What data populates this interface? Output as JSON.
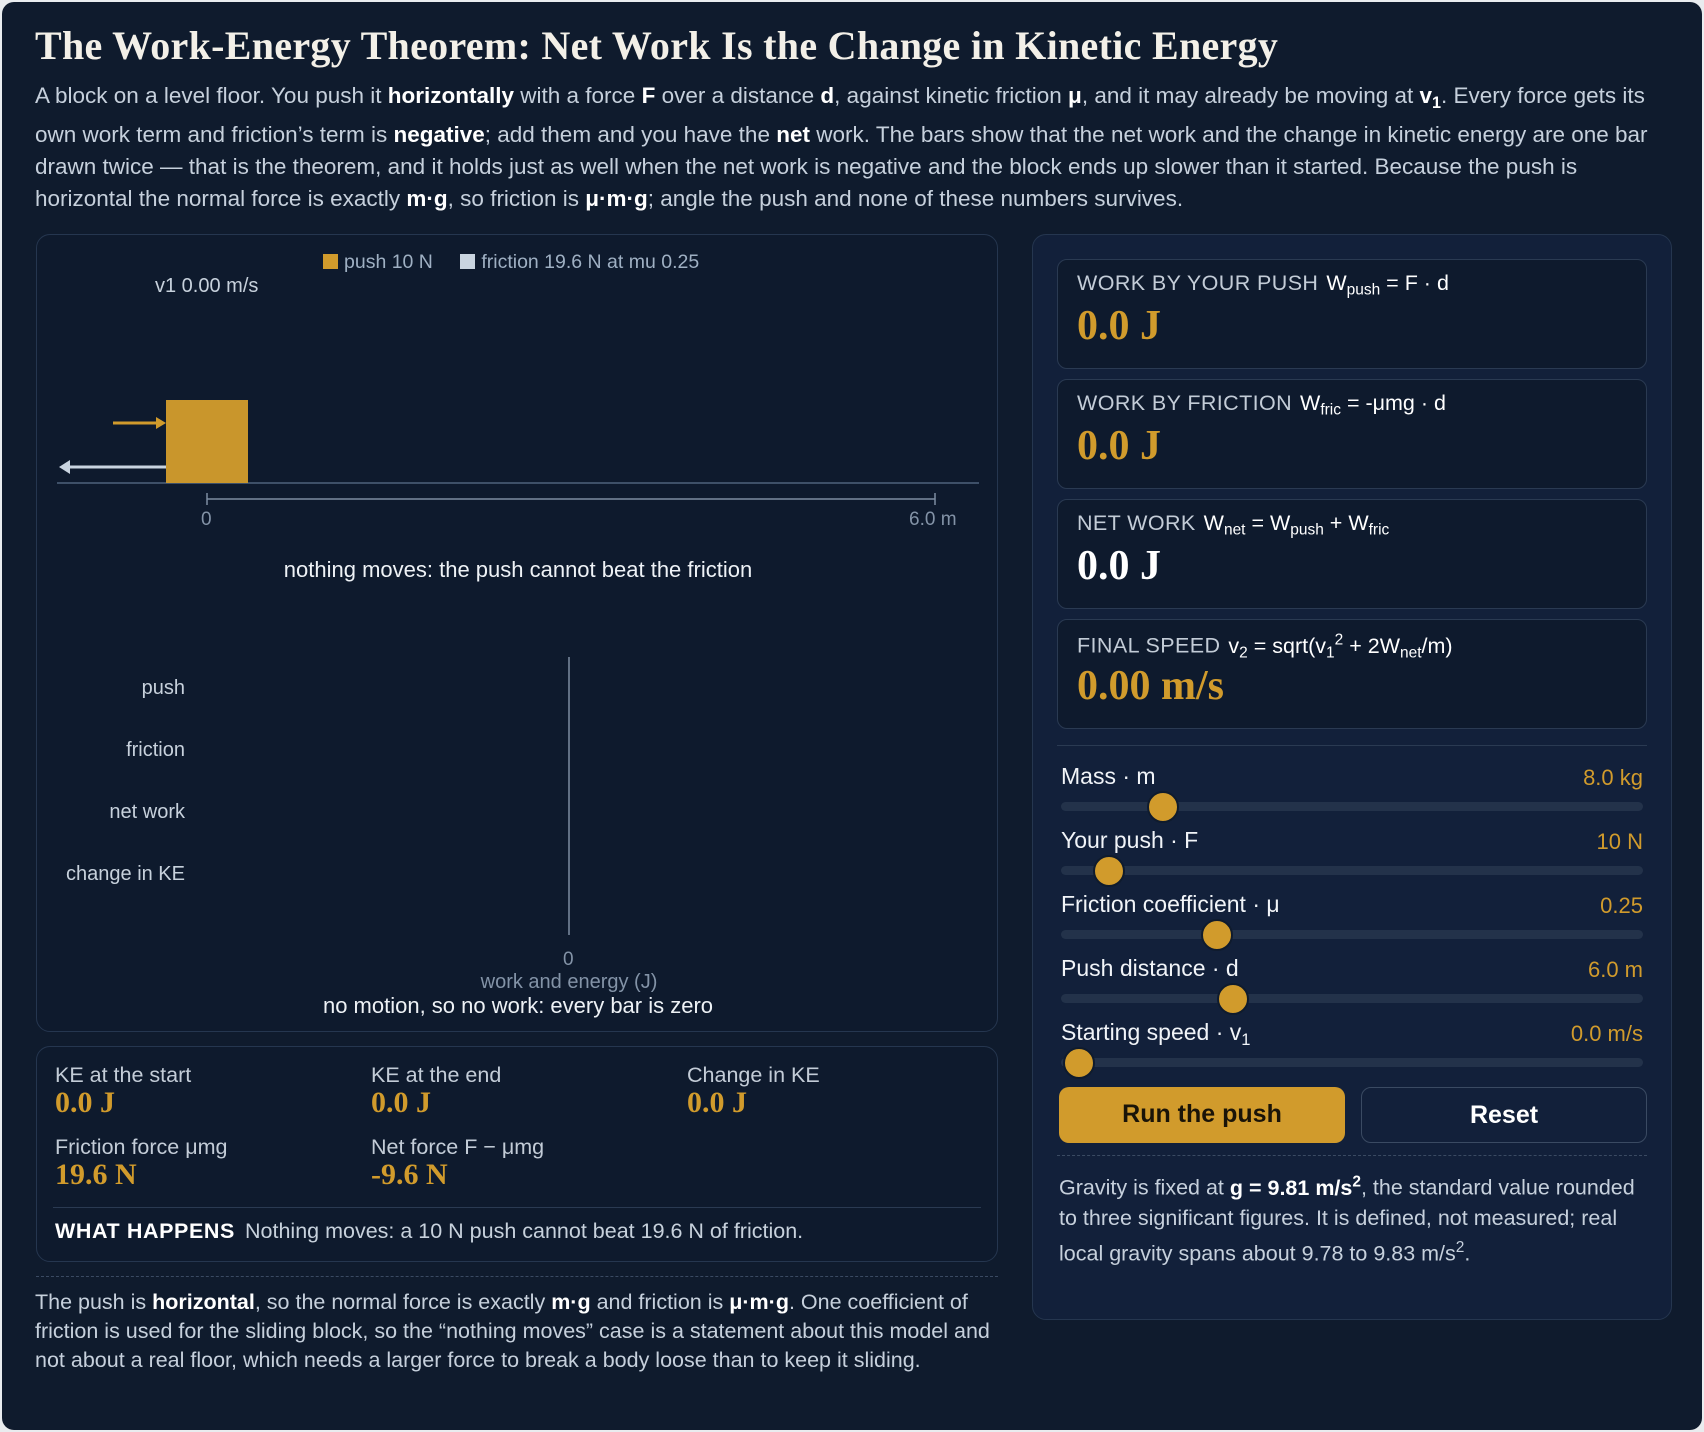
{
  "title": "The Work-Energy Theorem: Net Work Is the Change in Kinetic Energy",
  "legend": {
    "push_label": "push 10 N",
    "push_color": "#d19b2c",
    "friction_label": "friction 19.6 N at mu 0.25",
    "friction_color": "#c9d4e0"
  },
  "sim": {
    "v1_readout": "v1 0.00 m/s",
    "track_start": "0",
    "track_end": "6.0 m",
    "caption": "nothing moves: the push cannot beat the friction"
  },
  "bars": {
    "labels": [
      "push",
      "friction",
      "net work",
      "change in KE"
    ],
    "values": [
      0,
      0,
      0,
      0
    ],
    "zero_tick": "0",
    "axis_label": "work and energy (J)",
    "caption": "no motion, so no work: every bar is zero"
  },
  "stats": {
    "ke_start": {
      "label": "KE at the start",
      "value": "0.0 J"
    },
    "ke_end": {
      "label": "KE at the end",
      "value": "0.0 J"
    },
    "delta_ke": {
      "label": "Change in KE",
      "value": "0.0 J"
    },
    "friction_force": {
      "label": "Friction force μmg",
      "value": "19.6 N"
    },
    "net_force": {
      "label": "Net force F − μmg",
      "value": "-9.6 N"
    },
    "what_happens_label": "WHAT HAPPENS",
    "what_happens_text": "Nothing moves: a 10 N push cannot beat 19.6 N of friction."
  },
  "cards": {
    "push": {
      "label": "WORK BY YOUR PUSH",
      "value": "0.0 J"
    },
    "friction": {
      "label": "WORK BY FRICTION",
      "value": "0.0 J"
    },
    "net": {
      "label": "NET WORK",
      "value": "0.0 J"
    },
    "speed": {
      "label": "FINAL SPEED",
      "value": "0.00 m/s"
    }
  },
  "sliders": {
    "mass": {
      "name": "Mass · m",
      "value": "8.0 kg",
      "fraction": 0.175
    },
    "push": {
      "name": "Your push · F",
      "value": "10 N",
      "fraction": 0.082
    },
    "mu": {
      "name": "Friction coefficient · μ",
      "value": "0.25",
      "fraction": 0.268
    },
    "distance": {
      "name": "Push distance · d",
      "value": "6.0 m",
      "fraction": 0.295
    }
  },
  "buttons": {
    "run": "Run the push",
    "reset": "Reset"
  },
  "accent_color": "#d19b2c"
}
